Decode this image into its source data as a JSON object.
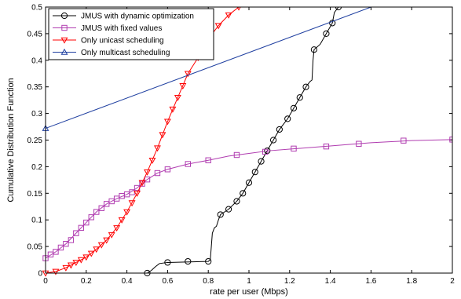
{
  "chart_data": {
    "type": "line",
    "title": "",
    "xlabel": "rate per user (Mbps)",
    "ylabel": "Cumulative Distribution Function",
    "xlim": [
      0,
      2
    ],
    "ylim": [
      0,
      0.5
    ],
    "grid": false,
    "legend_position": "top-left",
    "x_ticks": [
      "0",
      "0.2",
      "0.4",
      "0.6",
      "0.8",
      "1",
      "1.2",
      "1.4",
      "1.6",
      "1.8",
      "2"
    ],
    "y_ticks": [
      "0",
      "0.05",
      "0.1",
      "0.15",
      "0.2",
      "0.25",
      "0.3",
      "0.35",
      "0.4",
      "0.45",
      "0.5"
    ],
    "series": [
      {
        "name": "JMUS with dynamic optimization",
        "color": "#000000",
        "marker": "circle",
        "line_points": [
          [
            0.5,
            0
          ],
          [
            0.52,
            0.005
          ],
          [
            0.54,
            0.012
          ],
          [
            0.56,
            0.018
          ],
          [
            0.6,
            0.02
          ],
          [
            0.8,
            0.022
          ],
          [
            0.81,
            0.025
          ],
          [
            0.82,
            0.075
          ],
          [
            0.83,
            0.085
          ],
          [
            0.84,
            0.088
          ],
          [
            0.85,
            0.1
          ],
          [
            0.86,
            0.11
          ],
          [
            0.9,
            0.12
          ],
          [
            0.94,
            0.135
          ],
          [
            0.97,
            0.15
          ],
          [
            1.0,
            0.17
          ],
          [
            1.03,
            0.19
          ],
          [
            1.06,
            0.21
          ],
          [
            1.09,
            0.23
          ],
          [
            1.12,
            0.25
          ],
          [
            1.15,
            0.27
          ],
          [
            1.19,
            0.29
          ],
          [
            1.22,
            0.31
          ],
          [
            1.25,
            0.33
          ],
          [
            1.28,
            0.35
          ],
          [
            1.3,
            0.36
          ],
          [
            1.31,
            0.363
          ],
          [
            1.315,
            0.4
          ],
          [
            1.32,
            0.42
          ],
          [
            1.35,
            0.43
          ],
          [
            1.38,
            0.45
          ],
          [
            1.41,
            0.47
          ],
          [
            1.42,
            0.49
          ],
          [
            1.44,
            0.5
          ]
        ],
        "markers": [
          [
            0.5,
            0
          ],
          [
            0.6,
            0.02
          ],
          [
            0.7,
            0.022
          ],
          [
            0.8,
            0.022
          ],
          [
            0.86,
            0.11
          ],
          [
            0.9,
            0.12
          ],
          [
            0.94,
            0.135
          ],
          [
            0.97,
            0.15
          ],
          [
            1.0,
            0.17
          ],
          [
            1.03,
            0.19
          ],
          [
            1.06,
            0.21
          ],
          [
            1.09,
            0.23
          ],
          [
            1.12,
            0.25
          ],
          [
            1.15,
            0.27
          ],
          [
            1.19,
            0.29
          ],
          [
            1.22,
            0.31
          ],
          [
            1.25,
            0.33
          ],
          [
            1.28,
            0.35
          ],
          [
            1.32,
            0.42
          ],
          [
            1.38,
            0.45
          ],
          [
            1.41,
            0.47
          ],
          [
            1.44,
            0.5
          ]
        ]
      },
      {
        "name": "JMUS with fixed values",
        "color": "#b03cb0",
        "marker": "square",
        "line_points": [
          [
            0,
            0.028
          ],
          [
            0.05,
            0.04
          ],
          [
            0.1,
            0.055
          ],
          [
            0.15,
            0.075
          ],
          [
            0.2,
            0.095
          ],
          [
            0.25,
            0.115
          ],
          [
            0.3,
            0.13
          ],
          [
            0.35,
            0.14
          ],
          [
            0.4,
            0.148
          ],
          [
            0.45,
            0.16
          ],
          [
            0.5,
            0.176
          ],
          [
            0.55,
            0.188
          ],
          [
            0.6,
            0.195
          ],
          [
            0.65,
            0.2
          ],
          [
            0.7,
            0.205
          ],
          [
            0.8,
            0.212
          ],
          [
            0.9,
            0.22
          ],
          [
            1.0,
            0.225
          ],
          [
            1.1,
            0.23
          ],
          [
            1.2,
            0.233
          ],
          [
            1.3,
            0.236
          ],
          [
            1.4,
            0.239
          ],
          [
            1.5,
            0.242
          ],
          [
            1.6,
            0.245
          ],
          [
            1.7,
            0.247
          ],
          [
            1.8,
            0.249
          ],
          [
            1.9,
            0.25
          ],
          [
            2.0,
            0.251
          ]
        ],
        "markers": [
          [
            0,
            0.028
          ],
          [
            0.025,
            0.035
          ],
          [
            0.05,
            0.04
          ],
          [
            0.075,
            0.048
          ],
          [
            0.1,
            0.055
          ],
          [
            0.125,
            0.062
          ],
          [
            0.15,
            0.075
          ],
          [
            0.175,
            0.085
          ],
          [
            0.2,
            0.095
          ],
          [
            0.225,
            0.105
          ],
          [
            0.25,
            0.115
          ],
          [
            0.275,
            0.122
          ],
          [
            0.3,
            0.13
          ],
          [
            0.325,
            0.135
          ],
          [
            0.35,
            0.14
          ],
          [
            0.375,
            0.145
          ],
          [
            0.4,
            0.148
          ],
          [
            0.425,
            0.152
          ],
          [
            0.45,
            0.16
          ],
          [
            0.475,
            0.168
          ],
          [
            0.5,
            0.176
          ],
          [
            0.55,
            0.188
          ],
          [
            0.6,
            0.195
          ],
          [
            0.7,
            0.205
          ],
          [
            0.8,
            0.212
          ],
          [
            0.94,
            0.222
          ],
          [
            1.08,
            0.228
          ],
          [
            1.22,
            0.234
          ],
          [
            1.38,
            0.238
          ],
          [
            1.54,
            0.243
          ],
          [
            1.76,
            0.249
          ],
          [
            2.0,
            0.251
          ]
        ]
      },
      {
        "name": "Only unicast scheduling",
        "color": "#ff0000",
        "marker": "triangle-down",
        "line_points": [
          [
            0,
            0.0
          ],
          [
            0.05,
            0.003
          ],
          [
            0.1,
            0.01
          ],
          [
            0.15,
            0.02
          ],
          [
            0.2,
            0.03
          ],
          [
            0.25,
            0.045
          ],
          [
            0.3,
            0.062
          ],
          [
            0.35,
            0.085
          ],
          [
            0.4,
            0.115
          ],
          [
            0.45,
            0.15
          ],
          [
            0.5,
            0.19
          ],
          [
            0.55,
            0.235
          ],
          [
            0.6,
            0.285
          ],
          [
            0.65,
            0.33
          ],
          [
            0.7,
            0.375
          ],
          [
            0.75,
            0.405
          ],
          [
            0.8,
            0.44
          ],
          [
            0.85,
            0.465
          ],
          [
            0.9,
            0.485
          ],
          [
            0.95,
            0.5
          ]
        ],
        "markers": [
          [
            0,
            0.0
          ],
          [
            0.05,
            0.003
          ],
          [
            0.1,
            0.01
          ],
          [
            0.125,
            0.015
          ],
          [
            0.15,
            0.02
          ],
          [
            0.175,
            0.025
          ],
          [
            0.2,
            0.03
          ],
          [
            0.225,
            0.037
          ],
          [
            0.25,
            0.045
          ],
          [
            0.275,
            0.053
          ],
          [
            0.3,
            0.062
          ],
          [
            0.325,
            0.072
          ],
          [
            0.35,
            0.085
          ],
          [
            0.375,
            0.1
          ],
          [
            0.4,
            0.115
          ],
          [
            0.425,
            0.132
          ],
          [
            0.45,
            0.15
          ],
          [
            0.475,
            0.17
          ],
          [
            0.5,
            0.19
          ],
          [
            0.525,
            0.212
          ],
          [
            0.55,
            0.235
          ],
          [
            0.575,
            0.26
          ],
          [
            0.6,
            0.285
          ],
          [
            0.625,
            0.308
          ],
          [
            0.65,
            0.33
          ],
          [
            0.675,
            0.352
          ],
          [
            0.7,
            0.375
          ],
          [
            0.75,
            0.405
          ],
          [
            0.8,
            0.44
          ],
          [
            0.85,
            0.465
          ],
          [
            0.9,
            0.485
          ],
          [
            0.95,
            0.5
          ]
        ]
      },
      {
        "name": "Only multicast scheduling",
        "color": "#1f3fa0",
        "marker": "triangle-up",
        "line_points": [
          [
            0,
            0.272
          ],
          [
            1.6,
            0.5
          ]
        ],
        "markers": [
          [
            0,
            0.272
          ]
        ]
      }
    ]
  }
}
